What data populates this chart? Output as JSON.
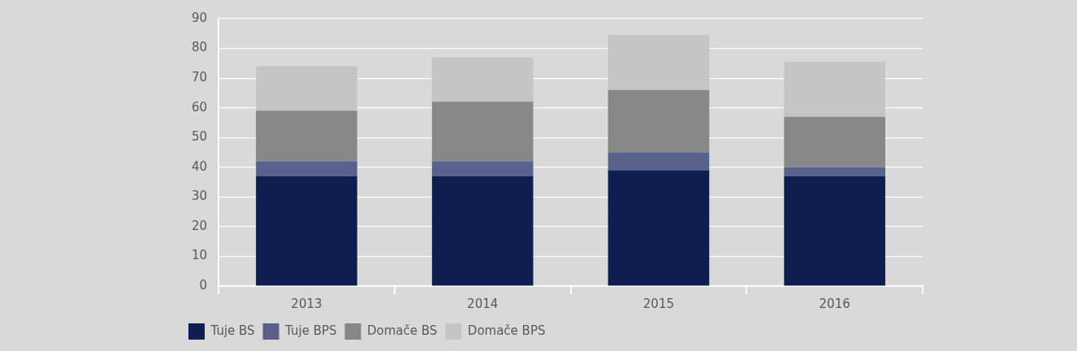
{
  "chart_data": {
    "type": "bar",
    "stacked": true,
    "categories": [
      "2013",
      "2014",
      "2015",
      "2016"
    ],
    "series": [
      {
        "name": "Tuje BS",
        "color": "#0e1f4f",
        "values": [
          37,
          37,
          39,
          37
        ]
      },
      {
        "name": "Tuje BPS",
        "color": "#58618c",
        "values": [
          5,
          5,
          6,
          3
        ]
      },
      {
        "name": "Domače BS",
        "color": "#878787",
        "values": [
          17,
          20,
          21,
          17
        ]
      },
      {
        "name": "Domače BPS",
        "color": "#c5c5c5",
        "values": [
          15,
          15,
          18.5,
          18.5
        ]
      }
    ],
    "ylim": [
      0,
      90
    ],
    "yticks": [
      0,
      10,
      20,
      30,
      40,
      50,
      60,
      70,
      80,
      90
    ],
    "grid": "y",
    "legend": "bottom"
  }
}
